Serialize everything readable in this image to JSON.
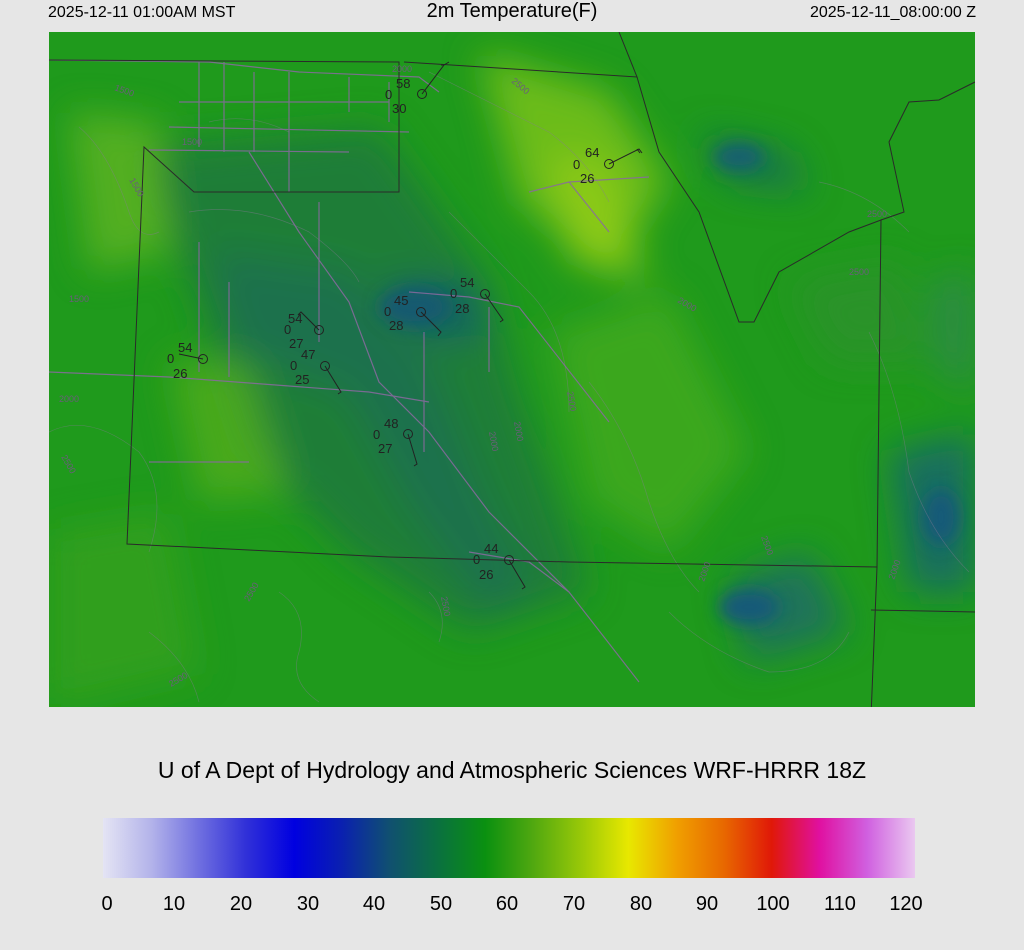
{
  "header": {
    "local_time": "2025-12-11 01:00AM MST",
    "title": "2m Temperature(F)",
    "utc_time": "2025-12-11_08:00:00 Z"
  },
  "credit": "U of A Dept of Hydrology and Atmospheric Sciences WRF-HRRR 18Z",
  "colorbar": {
    "ticks": [
      "0",
      "10",
      "20",
      "30",
      "40",
      "50",
      "60",
      "70",
      "80",
      "90",
      "100",
      "110",
      "120"
    ],
    "colors": [
      "#e4e4f4",
      "#b4b4ea",
      "#7070e0",
      "#3030d8",
      "#0000e0",
      "#0a20b0",
      "#105070",
      "#0a7040",
      "#0a9010",
      "#50a810",
      "#98c808",
      "#e8e800",
      "#f0a000",
      "#e86800",
      "#e01808",
      "#e010a0",
      "#d060e0",
      "#eac8f0"
    ]
  },
  "stations": [
    {
      "temp": "58",
      "wind": "0",
      "dew": "30"
    },
    {
      "temp": "64",
      "wind": "0",
      "dew": "26"
    },
    {
      "temp": "45",
      "wind": "0",
      "dew": "28"
    },
    {
      "temp": "54",
      "wind": "0",
      "dew": "28"
    },
    {
      "temp": "54",
      "wind": "0",
      "dew": "27"
    },
    {
      "temp": "47",
      "wind": "0",
      "dew": "25"
    },
    {
      "temp": "54",
      "wind": "0",
      "dew": "26"
    },
    {
      "temp": "48",
      "wind": "0",
      "dew": "27"
    },
    {
      "temp": "44",
      "wind": "0",
      "dew": "26"
    }
  ],
  "contour_labels": [
    "2000",
    "2500",
    "1500",
    "1500",
    "1500",
    "1500",
    "2000",
    "2500",
    "2000",
    "2500",
    "2500",
    "2000",
    "2500",
    "2000",
    "2500",
    "2500",
    "2500",
    "2000",
    "2000",
    "2500"
  ]
}
